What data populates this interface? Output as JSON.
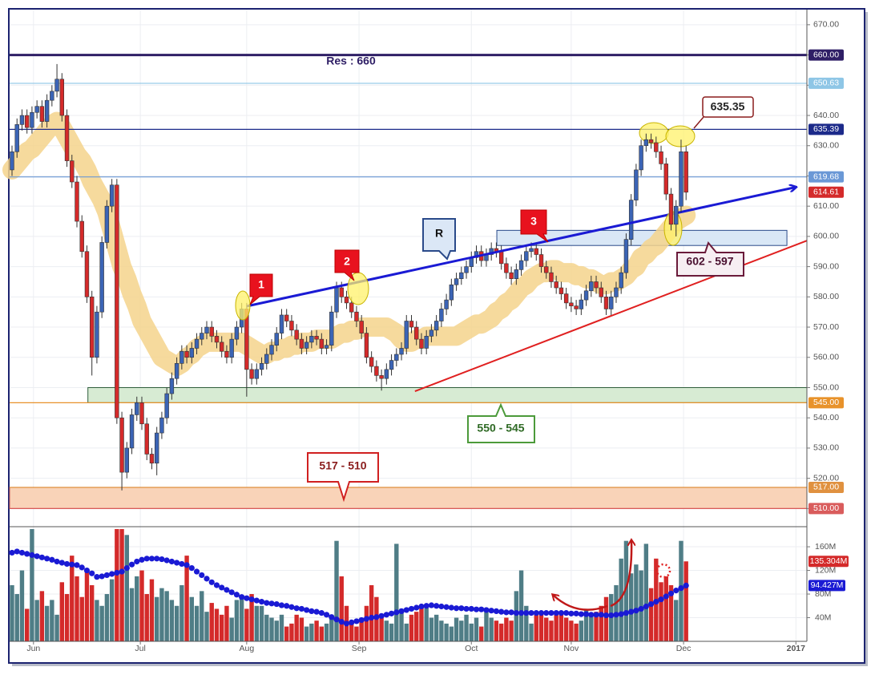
{
  "chart_data": {
    "type": "candlestick",
    "xlim": [
      -0.48,
      159.2
    ],
    "xticks": [
      {
        "value": 4.3,
        "label": "Jun"
      },
      {
        "value": 25.7,
        "label": "Jul"
      },
      {
        "value": 47,
        "label": "Aug"
      },
      {
        "value": 69.5,
        "label": "Sep"
      },
      {
        "value": 92,
        "label": "Oct"
      },
      {
        "value": 112,
        "label": "Nov"
      },
      {
        "value": 134.5,
        "label": "Dec"
      },
      {
        "value": 157,
        "label": "2017"
      }
    ],
    "ylim": [
      504,
      675
    ],
    "yticks": [
      {
        "value": 510,
        "label": "510.00"
      },
      {
        "value": 520,
        "label": "520.00"
      },
      {
        "value": 530,
        "label": "530.00"
      },
      {
        "value": 540,
        "label": "540.00"
      },
      {
        "value": 550,
        "label": "550.00"
      },
      {
        "value": 560,
        "label": "560.00"
      },
      {
        "value": 570,
        "label": "570.00"
      },
      {
        "value": 580,
        "label": "580.00"
      },
      {
        "value": 590,
        "label": "590.00"
      },
      {
        "value": 600,
        "label": "600.00"
      },
      {
        "value": 610,
        "label": "610.00"
      },
      {
        "value": 620,
        "label": "620.00"
      },
      {
        "value": 630,
        "label": "630.00"
      },
      {
        "value": 640,
        "label": "640.00"
      },
      {
        "value": 650,
        "label": "650.00"
      },
      {
        "value": 660,
        "label": "660.00"
      },
      {
        "value": 670,
        "label": "670.00"
      }
    ],
    "grid": true,
    "up_color": "#3b64b5",
    "down_color": "#d42a2a",
    "candles": [
      [
        622,
        630,
        620,
        628
      ],
      [
        628,
        639,
        626,
        637
      ],
      [
        637,
        642,
        635,
        640
      ],
      [
        640,
        642,
        634,
        636
      ],
      [
        636,
        643,
        634,
        641
      ],
      [
        641,
        645,
        639,
        643
      ],
      [
        643,
        645,
        636,
        638
      ],
      [
        638,
        647,
        636,
        645
      ],
      [
        645,
        650,
        643,
        648
      ],
      [
        648,
        657,
        646,
        652
      ],
      [
        652,
        654,
        638,
        640
      ],
      [
        640,
        642,
        623,
        625
      ],
      [
        625,
        627,
        616,
        618
      ],
      [
        618,
        620,
        603,
        605
      ],
      [
        605,
        607,
        593,
        595
      ],
      [
        595,
        597,
        578,
        580
      ],
      [
        580,
        582,
        554,
        560
      ],
      [
        560,
        577,
        558,
        575
      ],
      [
        575,
        600,
        573,
        598
      ],
      [
        598,
        612,
        596,
        610
      ],
      [
        610,
        619,
        608,
        617
      ],
      [
        617,
        619,
        538,
        540
      ],
      [
        540,
        542,
        516,
        522
      ],
      [
        522,
        532,
        520,
        530
      ],
      [
        530,
        543,
        528,
        541
      ],
      [
        541,
        547,
        539,
        545
      ],
      [
        545,
        547,
        536,
        538
      ],
      [
        538,
        540,
        526,
        528
      ],
      [
        528,
        530,
        523,
        525
      ],
      [
        525,
        537,
        521,
        535
      ],
      [
        535,
        542,
        533,
        540
      ],
      [
        540,
        550,
        538,
        548
      ],
      [
        548,
        555,
        546,
        553
      ],
      [
        553,
        560,
        551,
        558
      ],
      [
        558,
        564,
        556,
        562
      ],
      [
        562,
        564,
        558,
        560
      ],
      [
        560,
        565,
        558,
        563
      ],
      [
        563,
        568,
        561,
        566
      ],
      [
        566,
        570,
        564,
        568
      ],
      [
        568,
        572,
        566,
        570
      ],
      [
        570,
        572,
        565,
        567
      ],
      [
        567,
        569,
        563,
        565
      ],
      [
        565,
        567,
        560,
        562
      ],
      [
        562,
        564,
        558,
        560
      ],
      [
        560,
        568,
        558,
        566
      ],
      [
        566,
        572,
        564,
        570
      ],
      [
        570,
        578,
        568,
        576
      ],
      [
        576,
        578,
        547,
        556
      ],
      [
        556,
        558,
        551,
        553
      ],
      [
        553,
        558,
        551,
        556
      ],
      [
        556,
        560,
        554,
        558
      ],
      [
        558,
        563,
        556,
        561
      ],
      [
        561,
        566,
        559,
        564
      ],
      [
        564,
        570,
        562,
        568
      ],
      [
        568,
        576,
        566,
        574
      ],
      [
        574,
        576,
        570,
        572
      ],
      [
        572,
        574,
        567,
        569
      ],
      [
        569,
        571,
        564,
        566
      ],
      [
        566,
        568,
        561,
        563
      ],
      [
        563,
        567,
        561,
        565
      ],
      [
        565,
        569,
        563,
        567
      ],
      [
        567,
        569,
        564,
        566
      ],
      [
        566,
        568,
        561,
        563
      ],
      [
        563,
        566,
        561,
        564
      ],
      [
        564,
        577,
        562,
        575
      ],
      [
        575,
        585,
        573,
        583
      ],
      [
        583,
        585,
        578,
        580
      ],
      [
        580,
        582,
        576,
        578
      ],
      [
        578,
        580,
        573,
        575
      ],
      [
        575,
        577,
        570,
        572
      ],
      [
        572,
        574,
        566,
        568
      ],
      [
        568,
        570,
        558,
        560
      ],
      [
        560,
        562,
        555,
        557
      ],
      [
        557,
        559,
        552,
        554
      ],
      [
        554,
        556,
        549,
        553
      ],
      [
        553,
        558,
        551,
        556
      ],
      [
        556,
        561,
        554,
        559
      ],
      [
        559,
        563,
        557,
        561
      ],
      [
        561,
        565,
        559,
        563
      ],
      [
        563,
        574,
        561,
        572
      ],
      [
        572,
        574,
        568,
        570
      ],
      [
        570,
        572,
        564,
        566
      ],
      [
        566,
        568,
        561,
        563
      ],
      [
        563,
        569,
        561,
        567
      ],
      [
        567,
        571,
        565,
        569
      ],
      [
        569,
        574,
        567,
        572
      ],
      [
        572,
        578,
        570,
        576
      ],
      [
        576,
        581,
        574,
        579
      ],
      [
        579,
        586,
        577,
        584
      ],
      [
        584,
        588,
        582,
        586
      ],
      [
        586,
        590,
        584,
        588
      ],
      [
        588,
        592,
        586,
        590
      ],
      [
        590,
        595,
        588,
        593
      ],
      [
        593,
        597,
        591,
        595
      ],
      [
        595,
        597,
        590,
        592
      ],
      [
        592,
        596,
        590,
        594
      ],
      [
        594,
        598,
        592,
        596
      ],
      [
        596,
        598,
        593,
        595
      ],
      [
        595,
        597,
        589,
        591
      ],
      [
        591,
        593,
        586,
        588
      ],
      [
        588,
        590,
        584,
        586
      ],
      [
        586,
        591,
        584,
        589
      ],
      [
        589,
        594,
        587,
        592
      ],
      [
        592,
        597,
        590,
        595
      ],
      [
        595,
        598,
        593,
        596
      ],
      [
        596,
        598,
        592,
        594
      ],
      [
        594,
        596,
        588,
        590
      ],
      [
        590,
        592,
        586,
        588
      ],
      [
        588,
        590,
        583,
        585
      ],
      [
        585,
        587,
        581,
        583
      ],
      [
        583,
        585,
        579,
        581
      ],
      [
        581,
        583,
        576,
        578
      ],
      [
        578,
        580,
        575,
        577
      ],
      [
        577,
        579,
        574,
        576
      ],
      [
        576,
        581,
        574,
        579
      ],
      [
        579,
        584,
        577,
        582
      ],
      [
        582,
        587,
        580,
        585
      ],
      [
        585,
        587,
        581,
        583
      ],
      [
        583,
        585,
        578,
        580
      ],
      [
        580,
        582,
        574,
        576
      ],
      [
        576,
        582,
        574,
        580
      ],
      [
        580,
        585,
        578,
        583
      ],
      [
        583,
        590,
        581,
        588
      ],
      [
        588,
        601,
        586,
        599
      ],
      [
        599,
        614,
        597,
        612
      ],
      [
        612,
        624,
        610,
        622
      ],
      [
        622,
        632,
        620,
        630
      ],
      [
        630,
        634,
        628,
        632
      ],
      [
        632,
        634,
        629,
        631
      ],
      [
        631,
        633,
        626,
        628
      ],
      [
        628,
        630,
        622,
        624
      ],
      [
        624,
        626,
        612,
        614
      ],
      [
        614,
        616,
        602,
        604
      ],
      [
        604,
        612,
        600,
        610
      ],
      [
        610,
        632,
        608,
        628
      ],
      [
        628,
        630,
        612,
        614.61
      ]
    ],
    "ma": [
      622,
      624,
      626,
      628,
      629,
      631,
      633,
      635,
      637,
      638,
      636,
      633,
      630,
      627,
      625,
      622,
      618,
      615,
      612,
      608,
      602,
      596,
      590,
      586,
      581,
      577,
      572,
      569,
      566,
      563,
      560,
      559,
      558,
      557,
      558,
      560,
      561,
      563,
      564,
      565,
      565,
      565,
      565,
      565,
      565,
      565,
      565,
      564,
      563,
      562,
      561,
      561,
      562,
      562,
      563,
      563,
      564,
      564,
      565,
      565,
      565,
      566,
      566,
      566,
      566,
      567,
      568,
      568,
      569,
      569,
      570,
      570,
      570,
      570,
      570,
      570,
      569,
      568,
      566,
      565,
      565,
      566,
      566,
      567,
      567,
      567,
      567,
      567,
      567,
      567,
      568,
      569,
      570,
      571,
      571,
      572,
      573,
      575,
      576,
      578,
      579,
      581,
      583,
      584,
      586,
      587,
      588,
      588,
      589,
      589,
      588,
      588,
      588,
      587,
      587,
      586,
      586,
      585,
      584,
      584,
      585,
      585,
      586,
      587,
      589,
      590,
      593,
      594,
      596,
      597,
      599,
      601,
      603,
      605,
      606,
      607
    ],
    "ma_color": "#f5d48c",
    "ma_band_width": 24,
    "levels": [
      {
        "value": 660,
        "label": "660.00",
        "color": "#2f1f66"
      },
      {
        "value": 650.63,
        "label": "650.63",
        "color": "#8ec6e6"
      },
      {
        "value": 635.39,
        "label": "635.39",
        "color": "#1c2a8a"
      },
      {
        "value": 619.68,
        "label": "619.68",
        "color": "#6a98d6"
      },
      {
        "value": 545,
        "label": "545.00",
        "color": "#e8922a"
      },
      {
        "value": 517,
        "label": "517.00",
        "color": "#e0913f"
      },
      {
        "value": 510,
        "label": "510.00",
        "color": "#d95c5c"
      }
    ],
    "zones": [
      {
        "from": 545,
        "to": 550,
        "start": 15.2,
        "end": 159.2,
        "color": "#d7ebd3",
        "stroke": "#2e5d3a"
      },
      {
        "from": 597,
        "to": 602,
        "start": 97.1,
        "end": 155.2,
        "color": "#d9e7f6",
        "stroke": "#2a4a8a"
      },
      {
        "from": 510,
        "to": 517,
        "start": -0.48,
        "end": 159.2,
        "color": "#f9d3b8",
        "stroke": "#c45a5a"
      }
    ],
    "trendlines": [
      {
        "points": [
          [
            47,
            576.9
          ],
          [
            157,
            616.3
          ]
        ],
        "color": "#1a1ad4",
        "arrow": true
      },
      {
        "points": [
          [
            80.7,
            548.8
          ],
          [
            159.2,
            598.6
          ]
        ],
        "color": "#e02020",
        "arrow": false
      }
    ],
    "annotations": {
      "resistance": "Res : 660",
      "high": "635.35",
      "zone_upper": "602 - 597",
      "zone_mid": "550 - 545",
      "zone_low": "517 - 510",
      "r": "R",
      "touch_1": "1",
      "touch_2": "2",
      "touch_3": "3"
    },
    "volume": {
      "values": [
        95,
        80,
        120,
        55,
        190,
        70,
        85,
        60,
        70,
        45,
        100,
        80,
        145,
        110,
        75,
        120,
        95,
        70,
        60,
        80,
        105,
        190,
        190,
        180,
        90,
        110,
        120,
        80,
        105,
        75,
        90,
        85,
        70,
        60,
        95,
        145,
        75,
        60,
        85,
        50,
        65,
        55,
        45,
        60,
        40,
        70,
        75,
        55,
        80,
        60,
        60,
        45,
        40,
        35,
        45,
        25,
        30,
        45,
        40,
        25,
        30,
        35,
        25,
        30,
        45,
        170,
        110,
        60,
        30,
        25,
        40,
        60,
        95,
        75,
        40,
        35,
        30,
        165,
        55,
        30,
        45,
        50,
        60,
        60,
        40,
        45,
        35,
        30,
        25,
        40,
        35,
        45,
        30,
        40,
        25,
        50,
        40,
        35,
        30,
        40,
        35,
        85,
        120,
        60,
        30,
        45,
        45,
        40,
        35,
        50,
        45,
        40,
        35,
        30,
        35,
        55,
        45,
        50,
        60,
        75,
        80,
        95,
        140,
        170,
        115,
        130,
        120,
        165,
        90,
        140,
        100,
        110,
        95,
        70,
        170,
        135.304
      ],
      "last_label": "135.304M",
      "ma": [
        150,
        152,
        150,
        148,
        146,
        144,
        142,
        140,
        138,
        135,
        133,
        131,
        130,
        129,
        125,
        120,
        115,
        109,
        110,
        112,
        114,
        116,
        118,
        124,
        130,
        135,
        138,
        140,
        140,
        140,
        139,
        137,
        135,
        133,
        131,
        129,
        124,
        118,
        112,
        106,
        100,
        95,
        91,
        87,
        83,
        79,
        75,
        73,
        71,
        69,
        67,
        65,
        64,
        63,
        61,
        60,
        58,
        56,
        55,
        53,
        51,
        50,
        48,
        45,
        41,
        37,
        33,
        30,
        32,
        34,
        36,
        38,
        40,
        41,
        43,
        45,
        47,
        49,
        51,
        53,
        55,
        57,
        59,
        60,
        61,
        60,
        59,
        58,
        57,
        56,
        56,
        55,
        55,
        54,
        54,
        53,
        52,
        51,
        50,
        49,
        49,
        48,
        48,
        48,
        48,
        48,
        48,
        48,
        48,
        48,
        48,
        48,
        47,
        47,
        46,
        46,
        45,
        45,
        45,
        44,
        44,
        45,
        46,
        48,
        50,
        52,
        55,
        59,
        63,
        67,
        71,
        76,
        81,
        86,
        90,
        94.427
      ],
      "ma_last_label": "94.427M",
      "ma_color": "#1a1ad4",
      "up_color": "#4f7d86",
      "down_color": "#d42a2a",
      "ylim": [
        0,
        194
      ],
      "yticks": [
        {
          "value": 40,
          "label": "40M"
        },
        {
          "value": 80,
          "label": "80M"
        },
        {
          "value": 120,
          "label": "120M"
        },
        {
          "value": 160,
          "label": "160M"
        }
      ]
    }
  }
}
